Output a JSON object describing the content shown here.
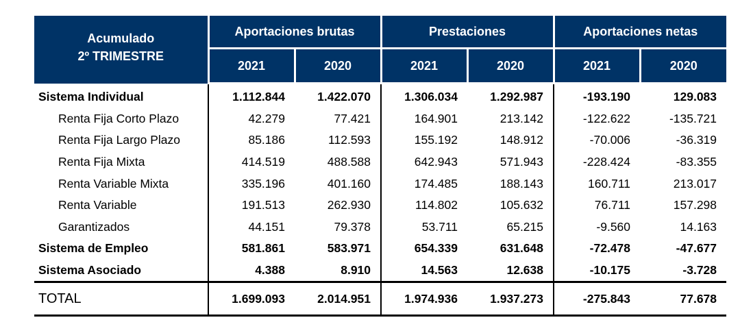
{
  "header": {
    "corner_line1": "Acumulado",
    "corner_line2": "2º TRIMESTRE",
    "groups": [
      "Aportaciones brutas",
      "Prestaciones",
      "Aportaciones netas"
    ],
    "years": [
      "2021",
      "2020",
      "2021",
      "2020",
      "2021",
      "2020"
    ]
  },
  "rows": [
    {
      "label": "Sistema Individual",
      "values": [
        "1.112.844",
        "1.422.070",
        "1.306.034",
        "1.292.987",
        "-193.190",
        "129.083"
      ]
    },
    {
      "label": "Renta Fija Corto Plazo",
      "values": [
        "42.279",
        "77.421",
        "164.901",
        "213.142",
        "-122.622",
        "-135.721"
      ]
    },
    {
      "label": "Renta Fija Largo Plazo",
      "values": [
        "85.186",
        "112.593",
        "155.192",
        "148.912",
        "-70.006",
        "-36.319"
      ]
    },
    {
      "label": "Renta Fija Mixta",
      "values": [
        "414.519",
        "488.588",
        "642.943",
        "571.943",
        "-228.424",
        "-83.355"
      ]
    },
    {
      "label": "Renta Variable Mixta",
      "values": [
        "335.196",
        "401.160",
        "174.485",
        "188.143",
        "160.711",
        "213.017"
      ]
    },
    {
      "label": "Renta Variable",
      "values": [
        "191.513",
        "262.930",
        "114.802",
        "105.632",
        "76.711",
        "157.298"
      ]
    },
    {
      "label": "Garantizados",
      "values": [
        "44.151",
        "79.378",
        "53.711",
        "65.215",
        "-9.560",
        "14.163"
      ]
    },
    {
      "label": "Sistema de Empleo",
      "values": [
        "581.861",
        "583.971",
        "654.339",
        "631.648",
        "-72.478",
        "-47.677"
      ]
    },
    {
      "label": "Sistema Asociado",
      "values": [
        "4.388",
        "8.910",
        "14.563",
        "12.638",
        "-10.175",
        "-3.728"
      ]
    }
  ],
  "total": {
    "label": "TOTAL",
    "values": [
      "1.699.093",
      "2.014.951",
      "1.974.936",
      "1.937.273",
      "-275.843",
      "77.678"
    ]
  },
  "colors": {
    "header_bg": "#003366",
    "header_text": "#ffffff"
  }
}
